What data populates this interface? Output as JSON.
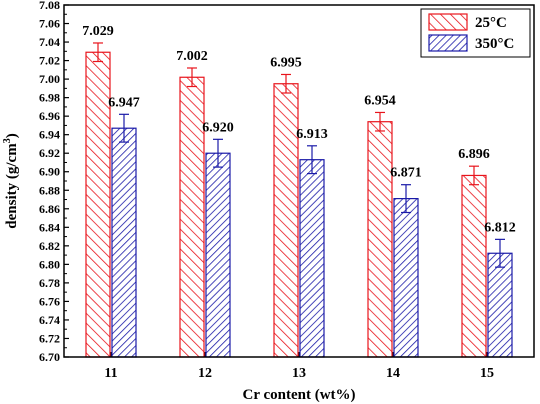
{
  "chart_data": {
    "type": "bar",
    "categories": [
      "11",
      "12",
      "13",
      "14",
      "15"
    ],
    "series": [
      {
        "name": "25°C",
        "color": "#e8141c",
        "pattern": "diagonal-hatch-up",
        "values": [
          7.029,
          7.002,
          6.995,
          6.954,
          6.896
        ],
        "labels": [
          "7.029",
          "7.002",
          "6.995",
          "6.954",
          "6.896"
        ],
        "errors": [
          0.01,
          0.01,
          0.01,
          0.01,
          0.01
        ]
      },
      {
        "name": "350°C",
        "color": "#1a1aa8",
        "pattern": "diagonal-hatch-down",
        "values": [
          6.947,
          6.92,
          6.913,
          6.871,
          6.812
        ],
        "labels": [
          "6.947",
          "6.920",
          "6.913",
          "6.871",
          "6.812"
        ],
        "errors": [
          0.015,
          0.015,
          0.015,
          0.015,
          0.015
        ]
      }
    ],
    "xlabel": "Cr content (wt%)",
    "ylabel": "density (g/cm",
    "ylabel_sup": "3",
    "ylabel_end": ")",
    "ylim": [
      6.7,
      7.08
    ],
    "ytick_step": 0.02,
    "yticks": [
      "6.70",
      "6.72",
      "6.74",
      "6.76",
      "6.78",
      "6.80",
      "6.82",
      "6.84",
      "6.86",
      "6.88",
      "6.90",
      "6.92",
      "6.94",
      "6.96",
      "6.98",
      "7.00",
      "7.02",
      "7.04",
      "7.06",
      "7.08"
    ],
    "legend_position": "top-right",
    "grid": false
  }
}
